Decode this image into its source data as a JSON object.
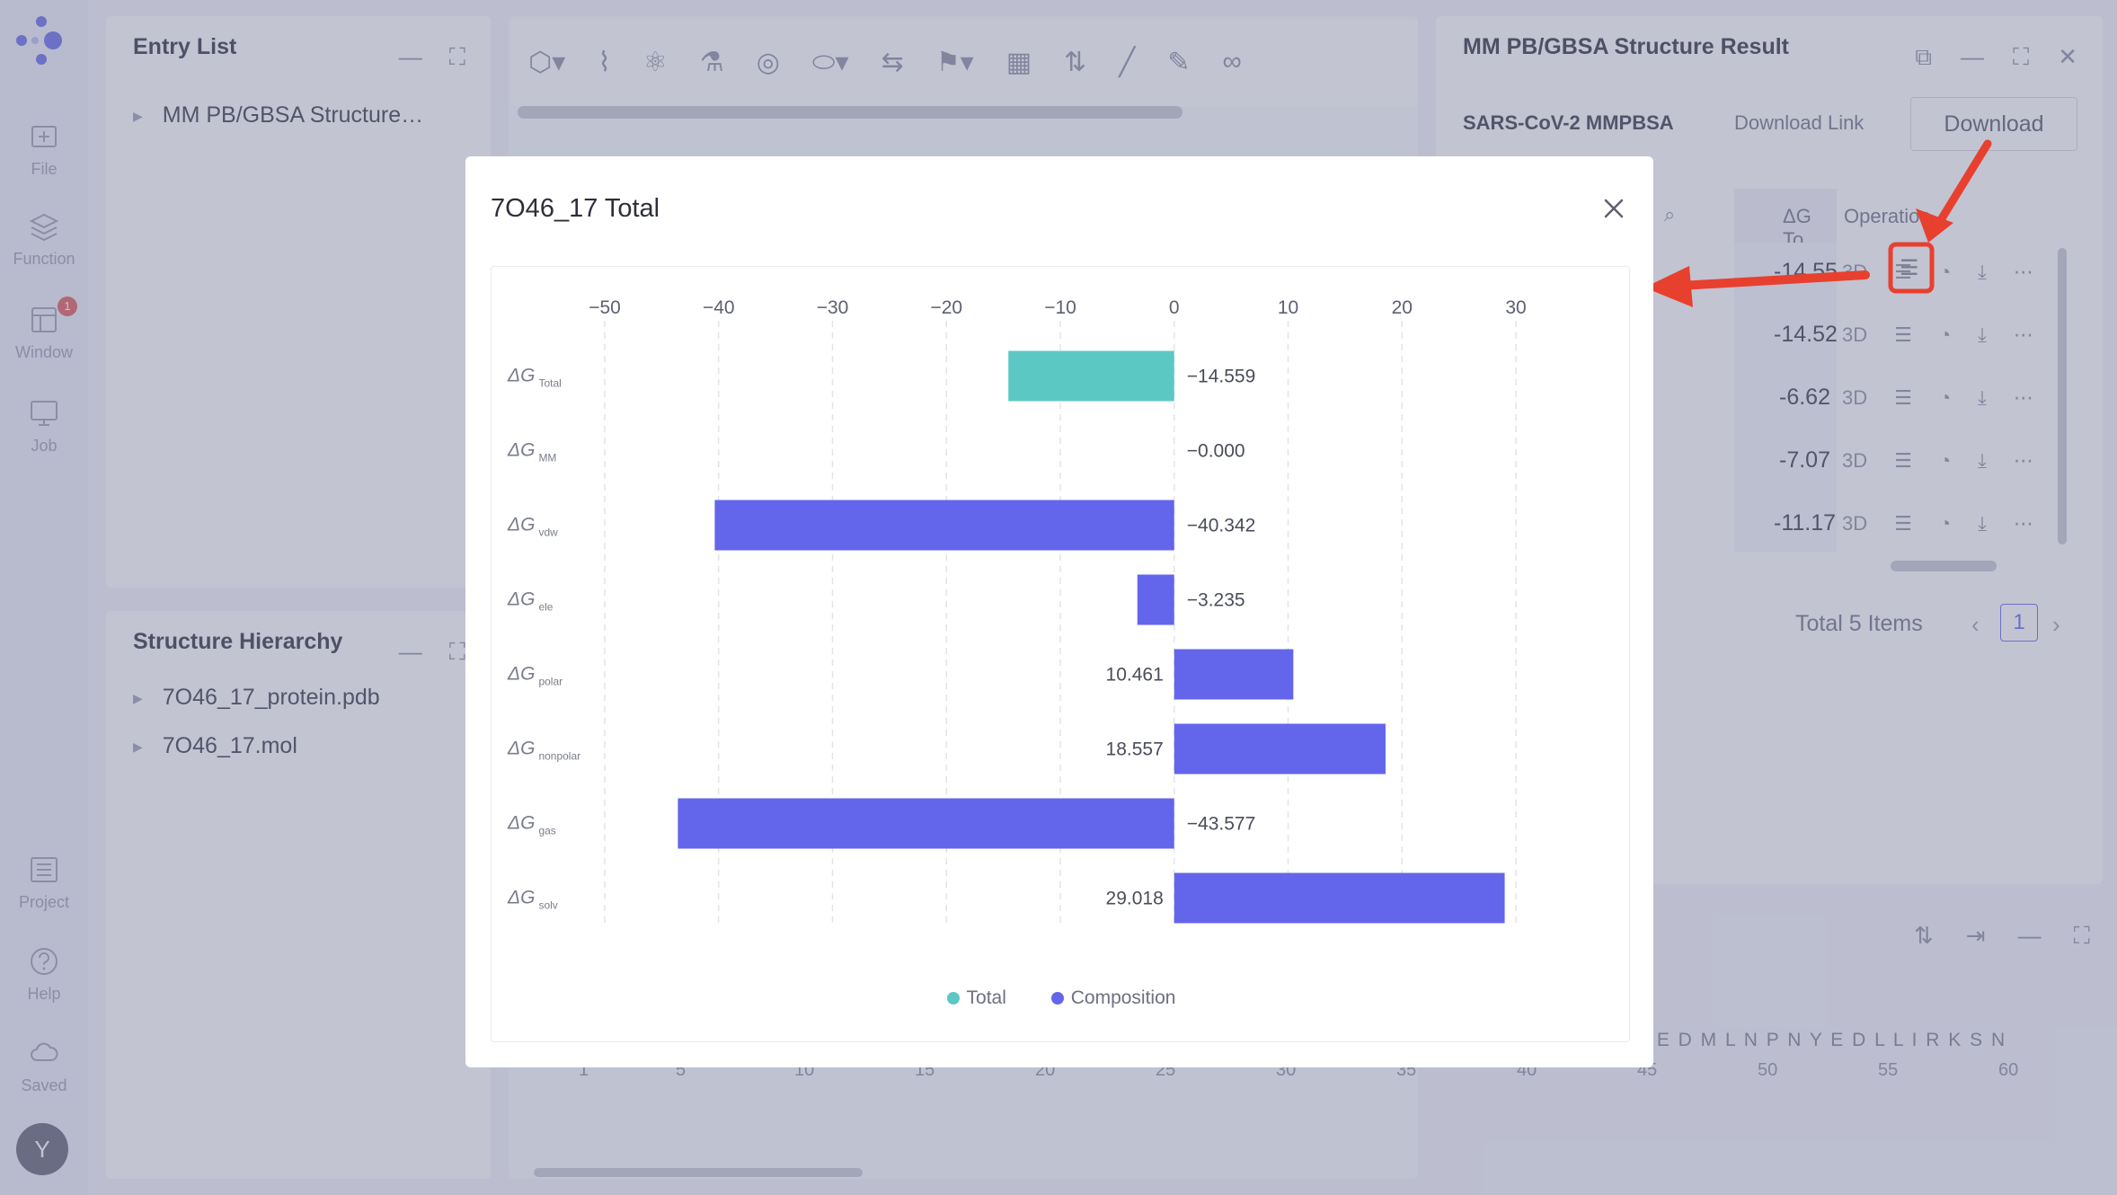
{
  "rail": {
    "items": [
      {
        "label": "File",
        "icon": "file-add-icon"
      },
      {
        "label": "Function",
        "icon": "layers-icon"
      },
      {
        "label": "Window",
        "icon": "window-icon",
        "badge": "1"
      },
      {
        "label": "Job",
        "icon": "monitor-icon"
      },
      {
        "label": "Project",
        "icon": "list-icon"
      },
      {
        "label": "Help",
        "icon": "help-icon"
      },
      {
        "label": "Saved",
        "icon": "cloud-icon"
      }
    ],
    "avatar": "Y"
  },
  "entry_list": {
    "title": "Entry List",
    "items": [
      "MM PB/GBSA Structure…"
    ]
  },
  "structure_hierarchy": {
    "title": "Structure Hierarchy",
    "items": [
      "7O46_17_protein.pdb",
      "7O46_17.mol"
    ]
  },
  "result_panel": {
    "title": "MM PB/GBSA Structure Result",
    "job_name": "SARS-CoV-2 MMPBSA",
    "download_link_label": "Download Link",
    "download_button": "Download",
    "col_dg_total": "ΔG To",
    "col_operation": "Operation",
    "row_values": [
      "-14.55",
      "-14.52",
      "-6.62",
      "-7.07",
      "-11.17"
    ],
    "op_3d": "3D",
    "total_items": "Total 5 Items",
    "current_page": "1"
  },
  "sequence_panel": {
    "letters": "S E D M L N P N Y E D L L I R K S N",
    "ticks": [
      "1",
      "5",
      "10",
      "15",
      "20",
      "25",
      "30",
      "35",
      "40",
      "45",
      "50",
      "55",
      "60"
    ]
  },
  "modal": {
    "title": "7O46_17 Total"
  },
  "chart_data": {
    "type": "bar",
    "orientation": "horizontal",
    "xlim": [
      -50,
      30
    ],
    "x_ticks": [
      "-50",
      "-40",
      "-30",
      "-20",
      "-10",
      "0",
      "10",
      "20",
      "30"
    ],
    "categories": [
      {
        "main": "ΔG",
        "sub": "Total"
      },
      {
        "main": "ΔG",
        "sub": "MM"
      },
      {
        "main": "ΔG",
        "sub": "vdw"
      },
      {
        "main": "ΔG",
        "sub": "ele"
      },
      {
        "main": "ΔG",
        "sub": "polar"
      },
      {
        "main": "ΔG",
        "sub": "nonpolar"
      },
      {
        "main": "ΔG",
        "sub": "gas"
      },
      {
        "main": "ΔG",
        "sub": "solv"
      }
    ],
    "values": [
      -14.559,
      -0.0,
      -40.342,
      -3.235,
      10.461,
      18.557,
      -43.577,
      29.018
    ],
    "value_labels": [
      "-14.559",
      "-0.000",
      "-40.342",
      "-3.235",
      "10.461",
      "18.557",
      "-43.577",
      "29.018"
    ],
    "series_type": [
      "Total",
      "Composition",
      "Composition",
      "Composition",
      "Composition",
      "Composition",
      "Composition",
      "Composition"
    ],
    "legend": [
      {
        "name": "Total",
        "color": "#5cc8c4"
      },
      {
        "name": "Composition",
        "color": "#6366ea"
      }
    ],
    "grid": "vertical-dashed",
    "legend_position": "bottom-center"
  }
}
